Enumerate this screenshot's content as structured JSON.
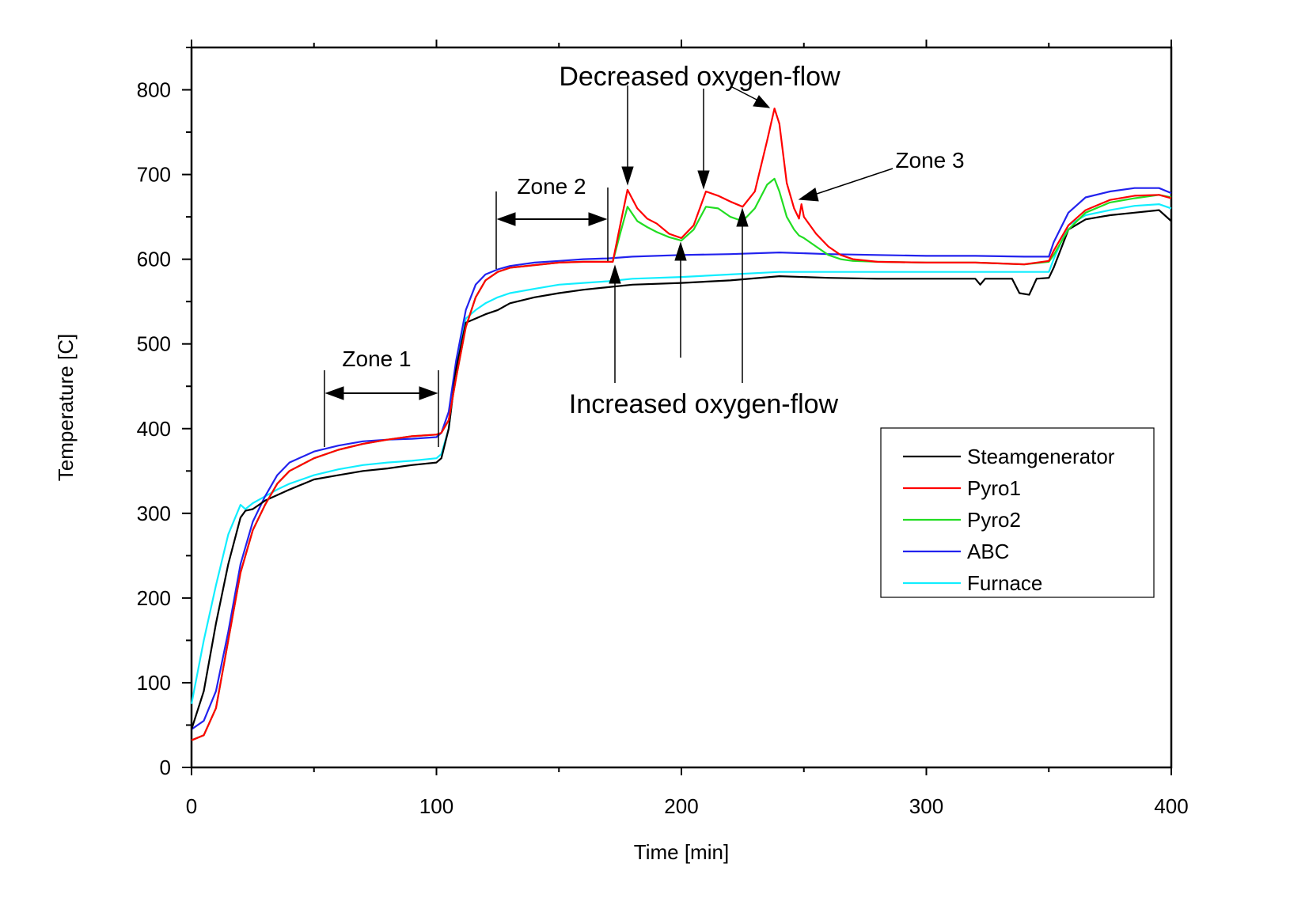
{
  "chart_data": {
    "type": "line",
    "title": "",
    "xlabel": "Time [min]",
    "ylabel": "Temperature [C]",
    "xlim": [
      0,
      400
    ],
    "ylim": [
      0,
      850
    ],
    "xticks": [
      0,
      100,
      200,
      300,
      400
    ],
    "yticks": [
      0,
      100,
      200,
      300,
      400,
      500,
      600,
      700,
      800
    ],
    "grid": false,
    "legend_position": "right",
    "series": [
      {
        "name": "Steamgenerator",
        "color": "#000000",
        "x": [
          0,
          5,
          10,
          15,
          20,
          22,
          25,
          30,
          40,
          50,
          60,
          70,
          80,
          90,
          100,
          102,
          105,
          108,
          112,
          116,
          120,
          125,
          130,
          140,
          150,
          160,
          170,
          180,
          200,
          220,
          240,
          260,
          280,
          300,
          320,
          322,
          324,
          335,
          338,
          342,
          345,
          350,
          352,
          358,
          365,
          375,
          385,
          395,
          400
        ],
        "y": [
          45,
          90,
          170,
          240,
          295,
          303,
          305,
          315,
          328,
          340,
          345,
          350,
          353,
          357,
          360,
          365,
          400,
          470,
          525,
          530,
          535,
          540,
          548,
          555,
          560,
          564,
          567,
          570,
          572,
          575,
          580,
          578,
          577,
          577,
          577,
          570,
          577,
          577,
          560,
          558,
          577,
          578,
          590,
          635,
          647,
          652,
          655,
          658,
          645
        ]
      },
      {
        "name": "Pyro1",
        "color": "#ff0000",
        "x": [
          0,
          5,
          10,
          15,
          20,
          25,
          30,
          35,
          40,
          50,
          60,
          70,
          80,
          90,
          100,
          102,
          105,
          108,
          112,
          116,
          120,
          125,
          130,
          140,
          150,
          160,
          172,
          175,
          178,
          182,
          186,
          190,
          195,
          200,
          205,
          210,
          215,
          220,
          225,
          230,
          235,
          238,
          240,
          243,
          246,
          248,
          249,
          250,
          255,
          260,
          265,
          270,
          280,
          300,
          320,
          340,
          350,
          352,
          358,
          365,
          375,
          385,
          395,
          400
        ],
        "y": [
          32,
          38,
          70,
          150,
          230,
          280,
          310,
          335,
          350,
          365,
          375,
          382,
          387,
          391,
          393,
          395,
          410,
          460,
          520,
          555,
          575,
          585,
          590,
          593,
          596,
          597,
          597,
          640,
          682,
          660,
          648,
          642,
          630,
          625,
          640,
          680,
          675,
          668,
          662,
          680,
          740,
          778,
          760,
          690,
          660,
          648,
          665,
          650,
          630,
          615,
          605,
          600,
          597,
          596,
          596,
          594,
          598,
          610,
          640,
          658,
          670,
          675,
          676,
          672
        ]
      },
      {
        "name": "Pyro2",
        "color": "#22dd22",
        "x": [
          0,
          5,
          10,
          15,
          20,
          25,
          30,
          35,
          40,
          50,
          60,
          70,
          80,
          90,
          100,
          102,
          105,
          108,
          112,
          116,
          120,
          125,
          130,
          140,
          150,
          160,
          172,
          175,
          178,
          182,
          186,
          190,
          195,
          200,
          205,
          210,
          215,
          220,
          225,
          230,
          235,
          238,
          240,
          243,
          246,
          248,
          250,
          255,
          260,
          265,
          270,
          280,
          300,
          320,
          340,
          350,
          352,
          358,
          365,
          375,
          385,
          395,
          400
        ],
        "y": [
          32,
          38,
          70,
          150,
          230,
          280,
          310,
          335,
          350,
          365,
          375,
          382,
          387,
          391,
          393,
          395,
          410,
          460,
          520,
          555,
          575,
          585,
          590,
          593,
          596,
          597,
          597,
          630,
          662,
          645,
          638,
          632,
          626,
          622,
          635,
          662,
          660,
          650,
          645,
          660,
          688,
          695,
          680,
          650,
          635,
          628,
          625,
          615,
          605,
          600,
          598,
          597,
          596,
          596,
          594,
          597,
          605,
          635,
          655,
          667,
          672,
          676,
          673
        ]
      },
      {
        "name": "ABC",
        "color": "#2222ee",
        "x": [
          0,
          5,
          10,
          15,
          20,
          25,
          30,
          35,
          40,
          50,
          60,
          70,
          80,
          90,
          100,
          102,
          105,
          108,
          112,
          116,
          120,
          125,
          130,
          140,
          150,
          160,
          170,
          180,
          200,
          220,
          240,
          260,
          280,
          300,
          320,
          340,
          350,
          352,
          358,
          365,
          375,
          385,
          395,
          400
        ],
        "y": [
          45,
          55,
          90,
          160,
          240,
          290,
          320,
          345,
          360,
          373,
          380,
          385,
          387,
          388,
          390,
          395,
          420,
          480,
          540,
          570,
          582,
          588,
          592,
          596,
          598,
          600,
          601,
          603,
          605,
          606,
          608,
          606,
          605,
          604,
          604,
          603,
          603,
          620,
          655,
          673,
          680,
          684,
          684,
          678
        ]
      },
      {
        "name": "Furnace",
        "color": "#11eeff",
        "x": [
          0,
          5,
          10,
          15,
          20,
          22,
          25,
          30,
          35,
          40,
          50,
          60,
          70,
          80,
          90,
          100,
          102,
          105,
          108,
          112,
          116,
          120,
          125,
          130,
          140,
          150,
          160,
          170,
          180,
          200,
          220,
          240,
          260,
          280,
          300,
          320,
          340,
          350,
          352,
          358,
          365,
          375,
          385,
          395,
          400
        ],
        "y": [
          75,
          150,
          215,
          275,
          310,
          305,
          312,
          320,
          328,
          335,
          345,
          352,
          357,
          360,
          362,
          365,
          370,
          400,
          470,
          530,
          540,
          548,
          555,
          560,
          565,
          570,
          572,
          574,
          577,
          579,
          582,
          585,
          585,
          585,
          585,
          585,
          585,
          585,
          600,
          640,
          652,
          658,
          663,
          665,
          660
        ]
      }
    ],
    "annotations": {
      "decreased": "Decreased oxygen-flow",
      "increased": "Increased oxygen-flow",
      "zone1": "Zone 1",
      "zone2": "Zone 2",
      "zone3": "Zone 3"
    }
  }
}
